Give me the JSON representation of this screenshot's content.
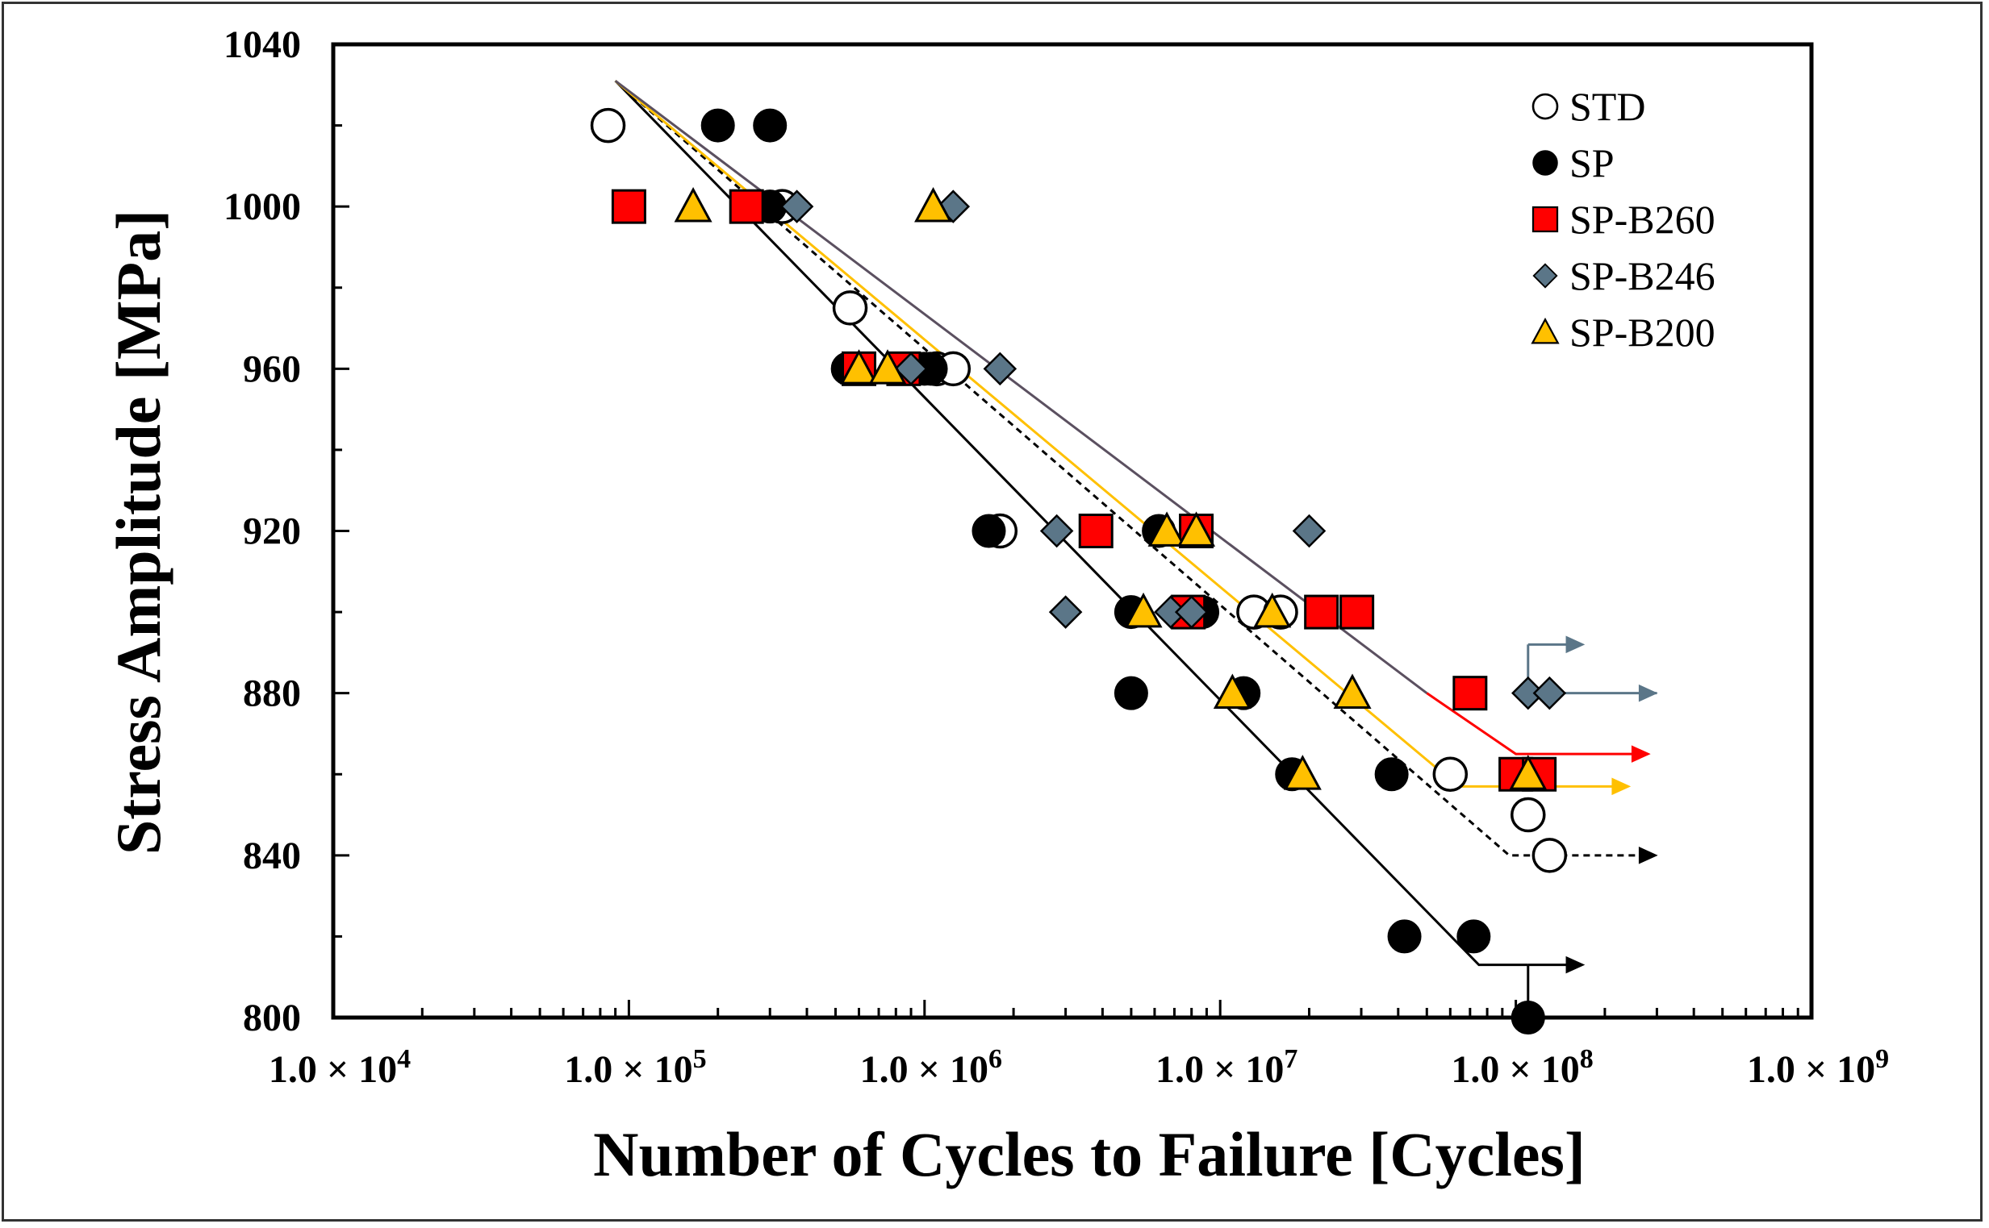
{
  "chart_data": {
    "type": "scatter",
    "title": "",
    "xlabel": "Number of Cycles to Failure [Cycles]",
    "ylabel": "Stress Amplitude [MPa]",
    "xscale": "log",
    "xlim": [
      10000,
      1000000000
    ],
    "ylim": [
      800,
      1040
    ],
    "x_tick_labels": [
      {
        "value": 10000,
        "mantissa": "1.0 × 10",
        "exp": "4"
      },
      {
        "value": 100000,
        "mantissa": "1.0 × 10",
        "exp": "5"
      },
      {
        "value": 1000000,
        "mantissa": "1.0 × 10",
        "exp": "6"
      },
      {
        "value": 10000000,
        "mantissa": "1.0 × 10",
        "exp": "7"
      },
      {
        "value": 100000000,
        "mantissa": "1.0 × 10",
        "exp": "8"
      },
      {
        "value": 1000000000,
        "mantissa": "1.0 × 10",
        "exp": "9"
      }
    ],
    "y_ticks": [
      800,
      840,
      880,
      920,
      960,
      1000,
      1040
    ],
    "y_tick_labels": [
      "800",
      "840",
      "880",
      "920",
      "960",
      "1000",
      "1040"
    ],
    "legend_position": "top-right",
    "series": [
      {
        "name": "STD",
        "marker": "circle-open",
        "color": "#ffffff",
        "points": [
          [
            85000,
            1020
          ],
          [
            330000,
            1000
          ],
          [
            560000,
            975
          ],
          [
            1100000,
            960
          ],
          [
            1250000,
            960
          ],
          [
            1800000,
            920
          ],
          [
            13000000,
            900
          ],
          [
            16000000,
            900
          ],
          [
            60000000,
            860
          ],
          [
            110000000,
            850
          ],
          [
            130000000,
            840
          ]
        ]
      },
      {
        "name": "SP",
        "marker": "circle-filled",
        "color": "#000000",
        "points": [
          [
            200000,
            1020
          ],
          [
            300000,
            1020
          ],
          [
            300000,
            1000
          ],
          [
            550000,
            960
          ],
          [
            1000000,
            960
          ],
          [
            1050000,
            960
          ],
          [
            1650000,
            920
          ],
          [
            6200000,
            920
          ],
          [
            5000000,
            900
          ],
          [
            8700000,
            900
          ],
          [
            5000000,
            880
          ],
          [
            12000000,
            880
          ],
          [
            17500000,
            860
          ],
          [
            38000000,
            860
          ],
          [
            42000000,
            820
          ],
          [
            72000000,
            820
          ],
          [
            110000000,
            800
          ]
        ]
      },
      {
        "name": "SP-B260",
        "marker": "square",
        "color": "#ff0000",
        "points": [
          [
            100000,
            1000
          ],
          [
            250000,
            1000
          ],
          [
            600000,
            960
          ],
          [
            850000,
            960
          ],
          [
            3800000,
            920
          ],
          [
            8300000,
            920
          ],
          [
            7800000,
            900
          ],
          [
            22000000,
            900
          ],
          [
            29000000,
            900
          ],
          [
            70000000,
            880
          ],
          [
            100000000,
            860
          ],
          [
            120000000,
            860
          ]
        ]
      },
      {
        "name": "SP-B246",
        "marker": "diamond",
        "color": "#5b7688",
        "points": [
          [
            370000,
            1000
          ],
          [
            1250000,
            1000
          ],
          [
            900000,
            960
          ],
          [
            1800000,
            960
          ],
          [
            2800000,
            920
          ],
          [
            20000000,
            920
          ],
          [
            3000000,
            900
          ],
          [
            6800000,
            900
          ],
          [
            8000000,
            900
          ],
          [
            110000000,
            880
          ],
          [
            130000000,
            880
          ]
        ]
      },
      {
        "name": "SP-B200",
        "marker": "triangle",
        "color": "#ffc000",
        "points": [
          [
            165000,
            1000
          ],
          [
            1070000,
            1000
          ],
          [
            600000,
            960
          ],
          [
            750000,
            960
          ],
          [
            6600000,
            920
          ],
          [
            8300000,
            920
          ],
          [
            5500000,
            900
          ],
          [
            15000000,
            900
          ],
          [
            11000000,
            880
          ],
          [
            28000000,
            880
          ],
          [
            19000000,
            860
          ],
          [
            110000000,
            860
          ]
        ]
      }
    ],
    "fit_lines": [
      {
        "series": "SP",
        "color": "#000000",
        "dashed": false,
        "points": [
          [
            90000,
            1031
          ],
          [
            75000000,
            813
          ],
          [
            110000000,
            813
          ]
        ],
        "runout": {
          "from": [
            110000000,
            813
          ],
          "to": [
            170000000,
            813
          ]
        }
      },
      {
        "series": "STD",
        "color": "#000000",
        "dashed": true,
        "points": [
          [
            90000,
            1031
          ],
          [
            95000000,
            840
          ],
          [
            130000000,
            840
          ]
        ],
        "runout": {
          "from": [
            130000000,
            840
          ],
          "to": [
            300000000,
            840
          ]
        }
      },
      {
        "series": "SP-B200",
        "color": "#ffc000",
        "dashed": false,
        "points": [
          [
            90000,
            1031
          ],
          [
            64000000,
            857
          ],
          [
            240000000,
            857
          ]
        ],
        "runout": null
      },
      {
        "series": "SP-B260",
        "color": "#ff0000",
        "dashed": false,
        "points": [
          [
            50000000,
            880
          ],
          [
            100000000,
            865
          ],
          [
            280000000,
            865
          ]
        ],
        "runout": null
      },
      {
        "series": "SP-B246",
        "color": "#5b5060",
        "dashed": false,
        "points": [
          [
            90000,
            1031
          ],
          [
            50000000,
            880
          ]
        ],
        "runout": null
      }
    ],
    "runout_arrows": [
      {
        "color": "#5b7688",
        "from": [
          110000000,
          880
        ],
        "to": [
          300000000,
          880
        ]
      },
      {
        "color": "#5b7688",
        "from": [
          110000000,
          880
        ],
        "to": [
          110000000,
          892
        ],
        "then_to": [
          170000000,
          892
        ]
      },
      {
        "color": "#000000",
        "from": [
          110000000,
          800
        ],
        "to": [
          110000000,
          813
        ]
      }
    ]
  }
}
